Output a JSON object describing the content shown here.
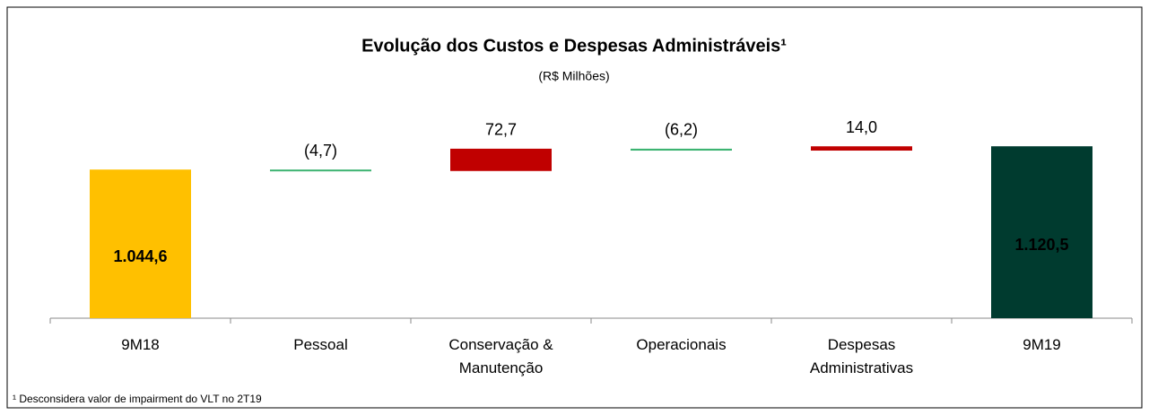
{
  "chart_data": {
    "type": "waterfall",
    "title": "Evolução dos Custos e Despesas Administráveis¹",
    "subtitle": "(R$ Milhões)",
    "categories": [
      "9M18",
      "Pessoal",
      "Conservação & Manutenção",
      "Operacionais",
      "Despesas Administrativas",
      "9M19"
    ],
    "values": [
      1044.6,
      -4.7,
      72.7,
      -6.2,
      14.0,
      1120.5
    ],
    "value_labels": [
      "1.044,6",
      "(4,7)",
      "72,7",
      "(6,2)",
      "14,0",
      "1.120,5"
    ],
    "total": [
      true,
      false,
      false,
      false,
      false,
      true
    ],
    "colors": [
      "#ffc000",
      "#3cb371",
      "#c00000",
      "#3cb371",
      "#c00000",
      "#003b2f"
    ],
    "ylim": [
      560,
      1200
    ],
    "footnote": "¹ Desconsidera valor de impairment do VLT no 2T19"
  }
}
